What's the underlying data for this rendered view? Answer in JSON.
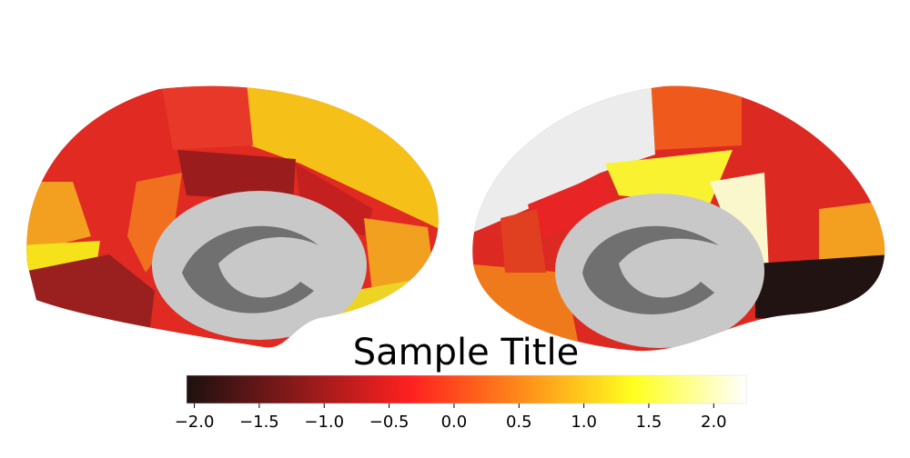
{
  "chart_data": {
    "type": "colorbar",
    "title": "Sample Title",
    "colormap": [
      "#1c1110",
      "#8b1a1a",
      "#ff2020",
      "#ff8c1a",
      "#ffff20",
      "#ffffff"
    ],
    "xlim": [
      -2.06,
      2.25
    ],
    "xticks": [
      {
        "value": -2.0,
        "label": "−2.0"
      },
      {
        "value": -1.5,
        "label": "−1.5"
      },
      {
        "value": -1.0,
        "label": "−1.0"
      },
      {
        "value": -0.5,
        "label": "−0.5"
      },
      {
        "value": 0,
        "label": "0.0"
      },
      0.5,
      {
        "value": 1.0,
        "label": "1.0"
      },
      1.5,
      {
        "value": 2.0,
        "label": "2.0"
      }
    ]
  }
}
